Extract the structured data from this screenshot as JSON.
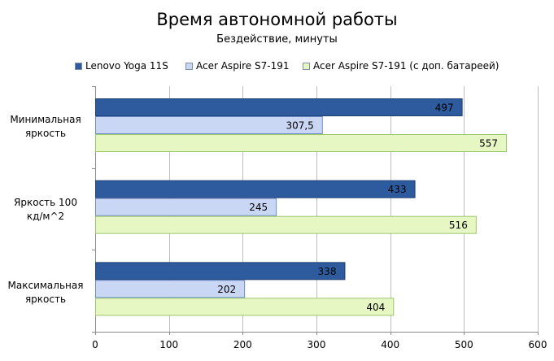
{
  "chart_data": {
    "type": "bar",
    "orientation": "horizontal",
    "title": "Время автономной работы",
    "subtitle": "Бездействие, минуты",
    "categories": [
      "Минимальная яркость",
      "Яркость 100 кд/м^2",
      "Максимальная яркость"
    ],
    "category_lines": [
      [
        "Минимальная",
        "яркость"
      ],
      [
        "Яркость 100",
        "кд/м^2"
      ],
      [
        "Максимальная",
        "яркость"
      ]
    ],
    "series": [
      {
        "name": "Lenovo Yoga 11S",
        "values": [
          497,
          433,
          338
        ],
        "labels": [
          "497",
          "433",
          "338"
        ],
        "color": "#2e5a9e"
      },
      {
        "name": "Acer Aspire S7-191",
        "values": [
          307.5,
          245,
          202
        ],
        "labels": [
          "307,5",
          "245",
          "202"
        ],
        "color": "#c9d7f5"
      },
      {
        "name": "Acer Aspire S7-191 (с доп. батареей)",
        "values": [
          557,
          516,
          404
        ],
        "labels": [
          "557",
          "516",
          "404"
        ],
        "color": "#e6f7c4"
      }
    ],
    "xlim": [
      0,
      600
    ],
    "x_ticks": [
      0,
      100,
      200,
      300,
      400,
      500,
      600
    ],
    "grid": true,
    "legend": "top"
  }
}
